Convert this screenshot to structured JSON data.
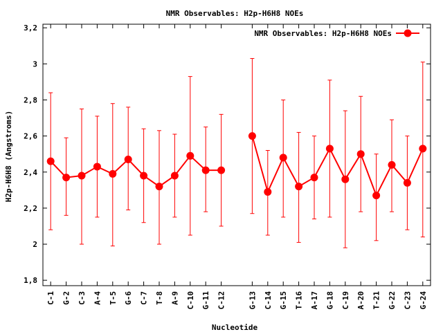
{
  "chart_data": {
    "type": "line",
    "title": "NMR Observables: H2p-H6H8 NOEs",
    "xlabel": "Nucleotide",
    "ylabel": "H2p-H6H8 (Angstroms)",
    "ylim": [
      1.77,
      3.22
    ],
    "yticks": [
      1.8,
      2,
      2.2,
      2.4,
      2.6,
      2.8,
      3,
      3.2
    ],
    "ytick_labels": [
      "1,8",
      "2",
      "2,2",
      "2,4",
      "2,6",
      "2,8",
      "3",
      "3,2"
    ],
    "xlim": [
      0.5,
      25.5
    ],
    "grid": false,
    "legend_position": "top-right",
    "series": [
      {
        "name": "NMR Observables: H2p-H6H8 NOEs",
        "color": "#ff0000",
        "points": [
          {
            "x": 1,
            "label": "C-1",
            "y": 2.46,
            "ylow": 2.08,
            "yhigh": 2.84
          },
          {
            "x": 2,
            "label": "G-2",
            "y": 2.37,
            "ylow": 2.16,
            "yhigh": 2.59
          },
          {
            "x": 3,
            "label": "C-3",
            "y": 2.38,
            "ylow": 2.0,
            "yhigh": 2.75
          },
          {
            "x": 4,
            "label": "A-4",
            "y": 2.43,
            "ylow": 2.15,
            "yhigh": 2.71
          },
          {
            "x": 5,
            "label": "T-5",
            "y": 2.39,
            "ylow": 1.99,
            "yhigh": 2.78
          },
          {
            "x": 6,
            "label": "G-6",
            "y": 2.47,
            "ylow": 2.19,
            "yhigh": 2.76
          },
          {
            "x": 7,
            "label": "C-7",
            "y": 2.38,
            "ylow": 2.12,
            "yhigh": 2.64
          },
          {
            "x": 8,
            "label": "T-8",
            "y": 2.32,
            "ylow": 2.0,
            "yhigh": 2.63
          },
          {
            "x": 9,
            "label": "A-9",
            "y": 2.38,
            "ylow": 2.15,
            "yhigh": 2.61
          },
          {
            "x": 10,
            "label": "C-10",
            "y": 2.49,
            "ylow": 2.05,
            "yhigh": 2.93
          },
          {
            "x": 11,
            "label": "G-11",
            "y": 2.41,
            "ylow": 2.18,
            "yhigh": 2.65
          },
          {
            "x": 12,
            "label": "C-12",
            "y": 2.41,
            "ylow": 2.1,
            "yhigh": 2.72
          },
          {
            "x": 14,
            "label": "G-13",
            "y": 2.6,
            "ylow": 2.17,
            "yhigh": 3.03
          },
          {
            "x": 15,
            "label": "C-14",
            "y": 2.29,
            "ylow": 2.05,
            "yhigh": 2.52
          },
          {
            "x": 16,
            "label": "G-15",
            "y": 2.48,
            "ylow": 2.15,
            "yhigh": 2.8
          },
          {
            "x": 17,
            "label": "T-16",
            "y": 2.32,
            "ylow": 2.01,
            "yhigh": 2.62
          },
          {
            "x": 18,
            "label": "A-17",
            "y": 2.37,
            "ylow": 2.14,
            "yhigh": 2.6
          },
          {
            "x": 19,
            "label": "G-18",
            "y": 2.53,
            "ylow": 2.15,
            "yhigh": 2.91
          },
          {
            "x": 20,
            "label": "C-19",
            "y": 2.36,
            "ylow": 1.98,
            "yhigh": 2.74
          },
          {
            "x": 21,
            "label": "A-20",
            "y": 2.5,
            "ylow": 2.18,
            "yhigh": 2.82
          },
          {
            "x": 22,
            "label": "T-21",
            "y": 2.27,
            "ylow": 2.02,
            "yhigh": 2.5
          },
          {
            "x": 23,
            "label": "G-22",
            "y": 2.44,
            "ylow": 2.18,
            "yhigh": 2.69
          },
          {
            "x": 24,
            "label": "C-23",
            "y": 2.34,
            "ylow": 2.08,
            "yhigh": 2.6
          },
          {
            "x": 25,
            "label": "G-24",
            "y": 2.53,
            "ylow": 2.04,
            "yhigh": 3.01
          }
        ]
      }
    ]
  }
}
